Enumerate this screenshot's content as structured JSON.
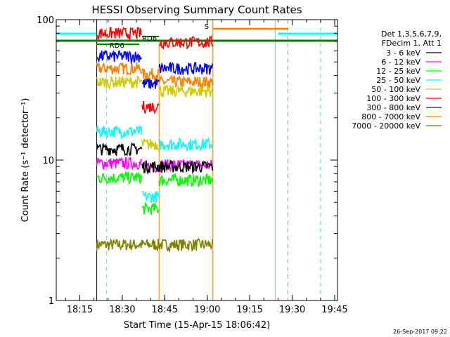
{
  "chart_data": {
    "type": "line",
    "title": "HESSI Observing Summary Count Rates",
    "xlabel": "Start Time (15-Apr-15 18:06:42)",
    "ylabel": "Count Rate (s⁻¹ detector⁻¹)",
    "ylim": [
      1,
      100
    ],
    "yscale": "log",
    "xlim": [
      "18:06:42",
      "19:46:00"
    ],
    "x_ticks": [
      "18:15",
      "18:30",
      "18:45",
      "19:00",
      "19:15",
      "19:30",
      "19:45"
    ],
    "y_ticks": [
      "1",
      "10",
      "100"
    ],
    "legend_position": "top-right",
    "legend_header": [
      "Det 1,3,5,6,7,9,",
      "FDecim 1, Att 1"
    ],
    "footer_date": "26-Sep-2017 09:22",
    "flags": [
      {
        "label": "RD6",
        "color": "#007f00"
      },
      {
        "label": "RD6",
        "color": "#007f00"
      },
      {
        "label": "S",
        "color": "#ff7f00"
      }
    ],
    "series": [
      {
        "name": "3 - 6 keV",
        "color": "#000000",
        "segments": [
          {
            "start": "18:21",
            "end": "18:37",
            "value": 12
          },
          {
            "start": "18:37",
            "end": "18:43",
            "value": 9
          },
          {
            "start": "18:43",
            "end": "19:02",
            "value": 9
          }
        ]
      },
      {
        "name": "6 - 12 keV",
        "color": "#ff00ff",
        "segments": [
          {
            "start": "18:21",
            "end": "18:37",
            "value": 9.5
          },
          {
            "start": "18:37",
            "end": "18:43",
            "value": 9
          },
          {
            "start": "18:43",
            "end": "19:02",
            "value": 9.2
          }
        ]
      },
      {
        "name": "12 - 25 keV",
        "color": "#00ff00",
        "segments": [
          {
            "start": "18:21",
            "end": "18:37",
            "value": 7.5
          },
          {
            "start": "18:37",
            "end": "18:43",
            "value": 4.5
          },
          {
            "start": "18:43",
            "end": "19:02",
            "value": 7.2
          }
        ]
      },
      {
        "name": "25 - 50 keV",
        "color": "#00ffff",
        "segments": [
          {
            "start": "18:21",
            "end": "18:37",
            "value": 16
          },
          {
            "start": "18:37",
            "end": "18:43",
            "value": 5.5
          },
          {
            "start": "18:43",
            "end": "19:02",
            "value": 13
          }
        ]
      },
      {
        "name": "50 - 100 keV",
        "color": "#cccc00",
        "segments": [
          {
            "start": "18:21",
            "end": "18:37",
            "value": 36
          },
          {
            "start": "18:37",
            "end": "18:43",
            "value": 13
          },
          {
            "start": "18:43",
            "end": "19:02",
            "value": 31
          }
        ]
      },
      {
        "name": "100 - 300 keV",
        "color": "#ff0000",
        "segments": [
          {
            "start": "18:21",
            "end": "18:37",
            "value": 80
          },
          {
            "start": "18:37",
            "end": "18:43",
            "value": 24
          },
          {
            "start": "18:43",
            "end": "19:02",
            "value": 69
          }
        ]
      },
      {
        "name": "300 - 800 keV",
        "color": "#0000ff",
        "segments": [
          {
            "start": "18:21",
            "end": "18:37",
            "value": 55
          },
          {
            "start": "18:37",
            "end": "18:43",
            "value": 35
          },
          {
            "start": "18:43",
            "end": "19:02",
            "value": 45
          }
        ]
      },
      {
        "name": "800 - 7000 keV",
        "color": "#ff8000",
        "segments": [
          {
            "start": "18:21",
            "end": "18:37",
            "value": 45
          },
          {
            "start": "18:37",
            "end": "18:43",
            "value": 41
          },
          {
            "start": "18:43",
            "end": "19:02",
            "value": 36
          }
        ]
      },
      {
        "name": "7000 - 20000 keV",
        "color": "#808000",
        "segments": [
          {
            "start": "18:21",
            "end": "18:37",
            "value": 2.5
          },
          {
            "start": "18:37",
            "end": "18:43",
            "value": 2.5
          },
          {
            "start": "18:43",
            "end": "19:02",
            "value": 2.5
          }
        ]
      }
    ]
  }
}
